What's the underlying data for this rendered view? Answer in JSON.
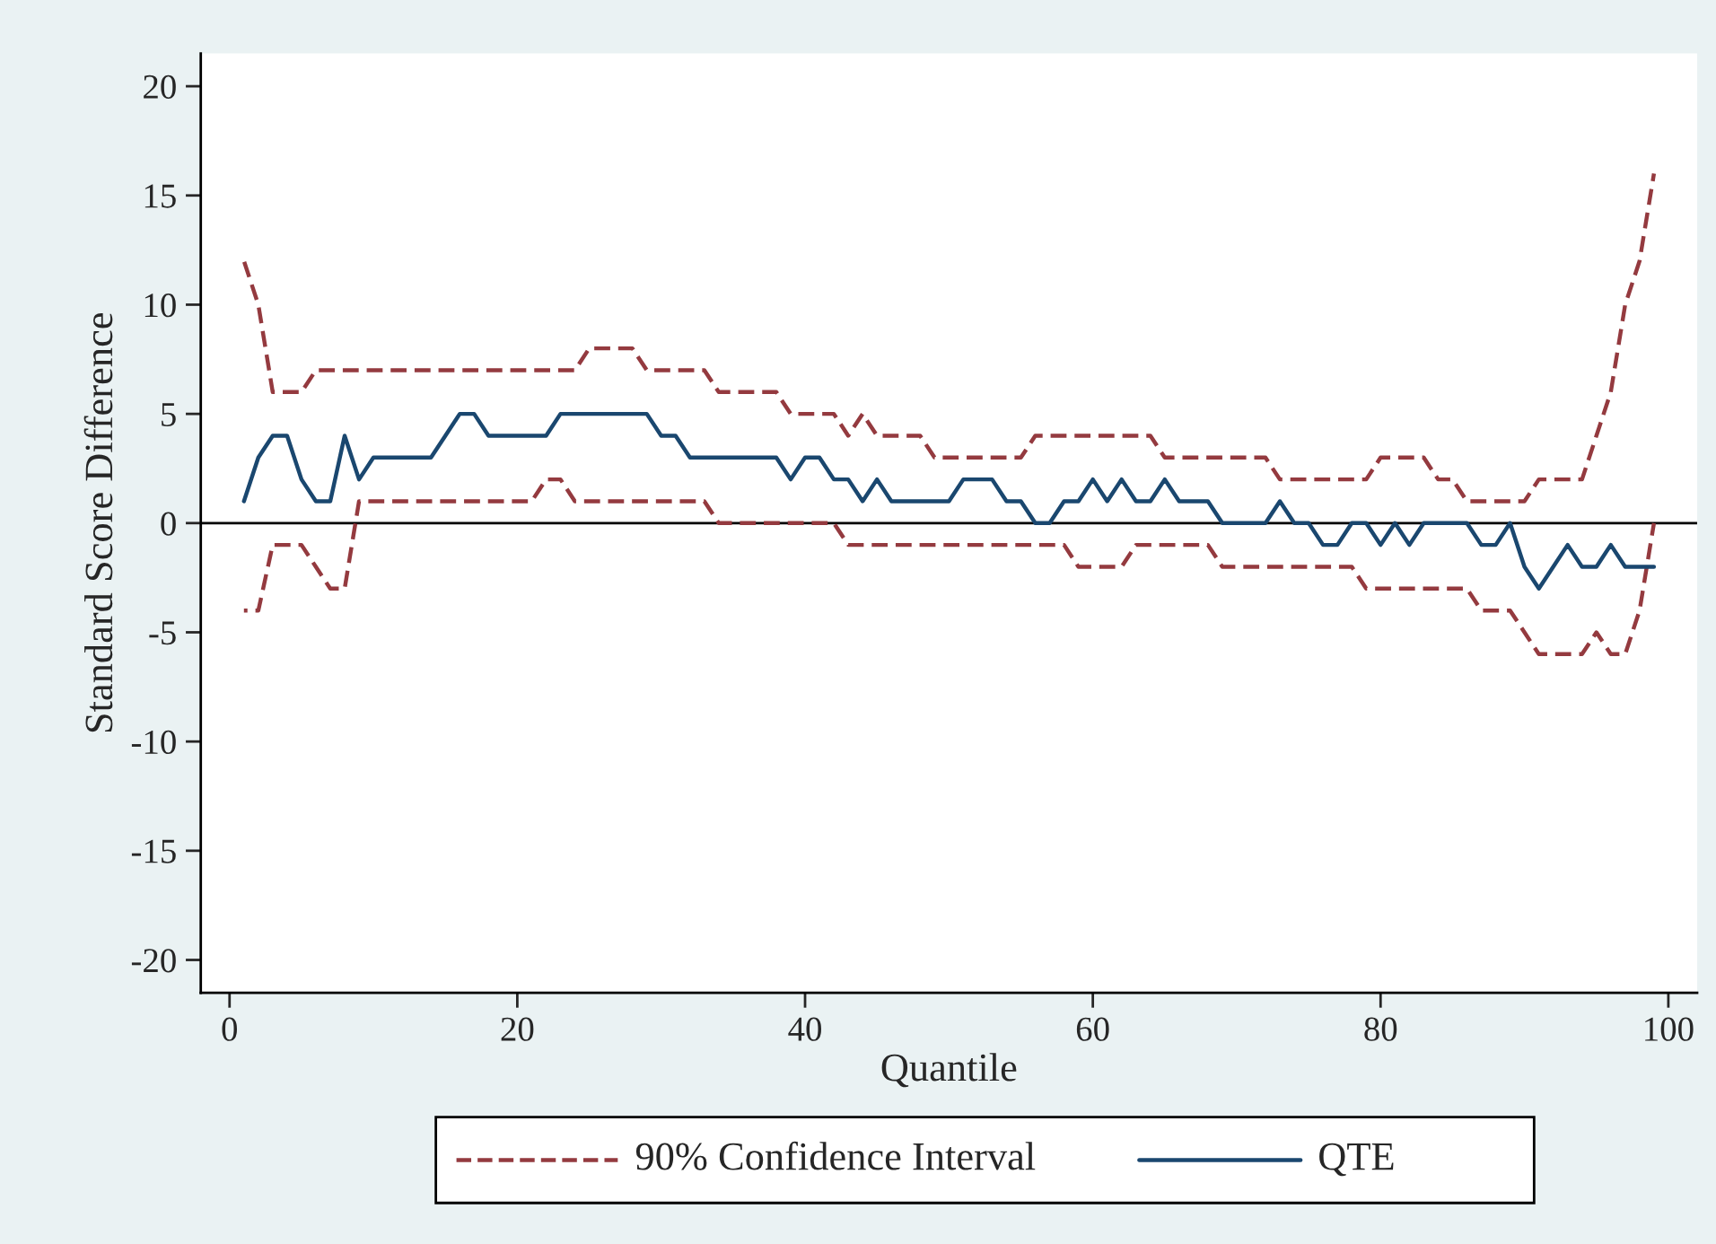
{
  "chart_data": {
    "type": "line",
    "xlabel": "Quantile",
    "ylabel": "Standard Score Difference",
    "x": [
      1,
      2,
      3,
      4,
      5,
      6,
      7,
      8,
      9,
      10,
      11,
      12,
      13,
      14,
      15,
      16,
      17,
      18,
      19,
      20,
      21,
      22,
      23,
      24,
      25,
      26,
      27,
      28,
      29,
      30,
      31,
      32,
      33,
      34,
      35,
      36,
      37,
      38,
      39,
      40,
      41,
      42,
      43,
      44,
      45,
      46,
      47,
      48,
      49,
      50,
      51,
      52,
      53,
      54,
      55,
      56,
      57,
      58,
      59,
      60,
      61,
      62,
      63,
      64,
      65,
      66,
      67,
      68,
      69,
      70,
      71,
      72,
      73,
      74,
      75,
      76,
      77,
      78,
      79,
      80,
      81,
      82,
      83,
      84,
      85,
      86,
      87,
      88,
      89,
      90,
      91,
      92,
      93,
      94,
      95,
      96,
      97,
      98,
      99
    ],
    "series": [
      {
        "name": "90% Confidence Interval",
        "color": "#943a3f",
        "line_style": "dashed",
        "values": [
          12,
          10,
          6,
          6,
          6,
          7,
          7,
          7,
          7,
          7,
          7,
          7,
          7,
          7,
          7,
          7,
          7,
          7,
          7,
          7,
          7,
          7,
          7,
          7,
          8,
          8,
          8,
          8,
          7,
          7,
          7,
          7,
          7,
          6,
          6,
          6,
          6,
          6,
          5,
          5,
          5,
          5,
          4,
          5,
          4,
          4,
          4,
          4,
          3,
          3,
          3,
          3,
          3,
          3,
          3,
          4,
          4,
          4,
          4,
          4,
          4,
          4,
          4,
          4,
          3,
          3,
          3,
          3,
          3,
          3,
          3,
          3,
          2,
          2,
          2,
          2,
          2,
          2,
          2,
          3,
          3,
          3,
          3,
          2,
          2,
          1,
          1,
          1,
          1,
          1,
          2,
          2,
          2,
          2,
          4,
          6,
          10,
          12,
          16
        ]
      },
      {
        "color": "#943a3f",
        "line_style": "dashed",
        "values": [
          -4,
          -4,
          -1,
          -1,
          -1,
          -2,
          -3,
          -3,
          1,
          1,
          1,
          1,
          1,
          1,
          1,
          1,
          1,
          1,
          1,
          1,
          1,
          2,
          2,
          1,
          1,
          1,
          1,
          1,
          1,
          1,
          1,
          1,
          1,
          0,
          0,
          0,
          0,
          0,
          0,
          0,
          0,
          0,
          -1,
          -1,
          -1,
          -1,
          -1,
          -1,
          -1,
          -1,
          -1,
          -1,
          -1,
          -1,
          -1,
          -1,
          -1,
          -1,
          -2,
          -2,
          -2,
          -2,
          -1,
          -1,
          -1,
          -1,
          -1,
          -1,
          -2,
          -2,
          -2,
          -2,
          -2,
          -2,
          -2,
          -2,
          -2,
          -2,
          -3,
          -3,
          -3,
          -3,
          -3,
          -3,
          -3,
          -3,
          -4,
          -4,
          -4,
          -5,
          -6,
          -6,
          -6,
          -6,
          -5,
          -6,
          -6,
          -4,
          0
        ]
      },
      {
        "name": "QTE",
        "color": "#1a476f",
        "line_style": "solid",
        "values": [
          1,
          3,
          4,
          4,
          2,
          1,
          1,
          4,
          2,
          3,
          3,
          3,
          3,
          3,
          4,
          5,
          5,
          4,
          4,
          4,
          4,
          4,
          5,
          5,
          5,
          5,
          5,
          5,
          5,
          4,
          4,
          3,
          3,
          3,
          3,
          3,
          3,
          3,
          2,
          3,
          3,
          2,
          2,
          1,
          2,
          1,
          1,
          1,
          1,
          1,
          2,
          2,
          2,
          1,
          1,
          0,
          0,
          1,
          1,
          2,
          1,
          2,
          1,
          1,
          2,
          1,
          1,
          1,
          0,
          0,
          0,
          0,
          1,
          0,
          0,
          -1,
          -1,
          0,
          0,
          -1,
          0,
          -1,
          0,
          0,
          0,
          0,
          -1,
          -1,
          0,
          -2,
          -3,
          -2,
          -1,
          -2,
          -2,
          -1,
          -2,
          -2,
          -2
        ]
      }
    ],
    "xlim": [
      -2,
      102
    ],
    "xticks": [
      0,
      20,
      40,
      60,
      80,
      100
    ],
    "ylim": [
      -21.5,
      21.5
    ],
    "yticks": [
      -20,
      -15,
      -10,
      -5,
      0,
      5,
      10,
      15,
      20
    ],
    "ref_lines": [
      {
        "axis": "y",
        "value": 0,
        "color": "#000000",
        "line_style": "solid"
      }
    ],
    "grid": false,
    "legend": "bottom"
  }
}
